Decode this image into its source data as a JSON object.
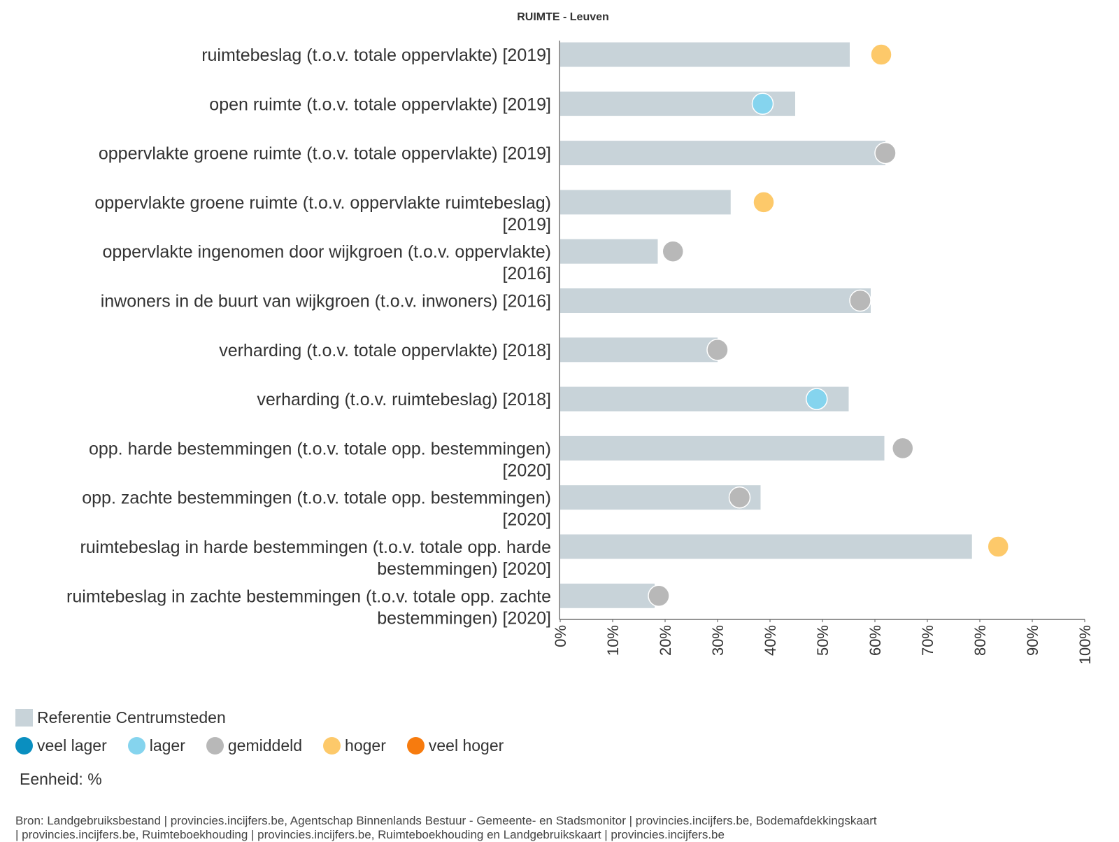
{
  "chart_data": {
    "type": "bar",
    "title": "RUIMTE - Leuven",
    "categories": [
      "ruimtebeslag (t.o.v. totale oppervlakte) [2019]",
      "open ruimte (t.o.v. totale oppervlakte) [2019]",
      "oppervlakte groene ruimte (t.o.v. totale oppervlakte) [2019]",
      "oppervlakte groene ruimte (t.o.v. oppervlakte ruimtebeslag) [2019]",
      "oppervlakte ingenomen door wijkgroen (t.o.v. oppervlakte) [2016]",
      "inwoners in de buurt van wijkgroen (t.o.v. inwoners) [2016]",
      "verharding (t.o.v. totale oppervlakte) [2018]",
      "verharding (t.o.v. ruimtebeslag) [2018]",
      "opp. harde bestemmingen (t.o.v. totale opp. bestemmingen) [2020]",
      "opp. zachte bestemmingen (t.o.v. totale opp. bestemmingen) [2020]",
      "ruimtebeslag in harde bestemmingen (t.o.v. totale opp. harde bestemmingen) [2020]",
      "ruimtebeslag in zachte bestemmingen (t.o.v. totale opp. zachte bestemmingen) [2020]"
    ],
    "series": [
      {
        "name": "Referentie Centrumsteden",
        "values": [
          55.2,
          44.8,
          62.0,
          32.5,
          18.6,
          59.2,
          30.0,
          55.0,
          61.8,
          38.2,
          78.5,
          18.0
        ]
      },
      {
        "name": "Leuven",
        "values": [
          61.2,
          38.6,
          62.0,
          38.8,
          21.5,
          57.2,
          30.0,
          48.9,
          65.3,
          34.2,
          83.5,
          18.8
        ],
        "classes": [
          "hoger",
          "lager",
          "gemiddeld",
          "hoger",
          "gemiddeld",
          "gemiddeld",
          "gemiddeld",
          "lager",
          "gemiddeld",
          "gemiddeld",
          "hoger",
          "gemiddeld"
        ]
      }
    ],
    "x_ticks": [
      "0%",
      "10%",
      "20%",
      "30%",
      "40%",
      "50%",
      "60%",
      "70%",
      "80%",
      "90%",
      "100%"
    ],
    "xlim": [
      0,
      100
    ],
    "grid": false,
    "legend_placement": "bottom-left",
    "unit": "%",
    "colors": {
      "reference_bar": "#c8d3d9",
      "veel lager": "#0a8fc0",
      "lager": "#85d4ee",
      "gemiddeld": "#b8b8b8",
      "hoger": "#fdc96a",
      "veel hoger": "#f77b0e"
    }
  },
  "legend": {
    "reference_label": "Referentie Centrumsteden",
    "classes": [
      {
        "label": "veel lager",
        "color": "#0a8fc0"
      },
      {
        "label": "lager",
        "color": "#85d4ee"
      },
      {
        "label": "gemiddeld",
        "color": "#b8b8b8"
      },
      {
        "label": "hoger",
        "color": "#fdc96a"
      },
      {
        "label": "veel hoger",
        "color": "#f77b0e"
      }
    ]
  },
  "unit_text": "Eenheid: %",
  "source_text": "Bron: Landgebruiksbestand | provincies.incijfers.be, Agentschap Binnenlands Bestuur - Gemeente- en Stadsmonitor | provincies.incijfers.be, Bodemafdekkingskaart | provincies.incijfers.be, Ruimteboekhouding | provincies.incijfers.be, Ruimteboekhouding en Landgebruikskaart | provincies.incijfers.be"
}
